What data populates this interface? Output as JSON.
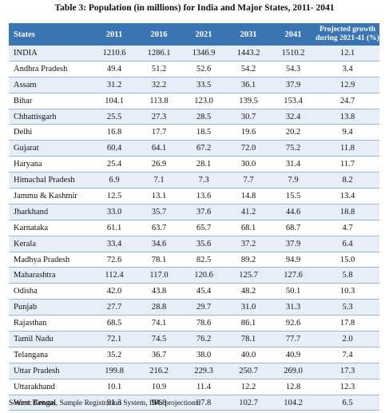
{
  "title": "Table 3: Population (in millions) for India and Major States, 2011- 2041",
  "headers": {
    "states": "States",
    "y2011": "2011",
    "y2016": "2016",
    "y2021": "2021",
    "y2031": "2031",
    "y2041": "2041",
    "growth_line1": "Projected growth",
    "growth_line2": "during 2021-41 (%)"
  },
  "rows": [
    {
      "state": "INDIA",
      "v2011": "1210.6",
      "v2016": "1286.1",
      "v2021": "1346.9",
      "v2031": "1443.2",
      "v2041": "1510.2",
      "growth": "12.1"
    },
    {
      "state": "Andhra Pradesh",
      "v2011": "49.4",
      "v2016": "51.2",
      "v2021": "52.6",
      "v2031": "54.2",
      "v2041": "54.3",
      "growth": "3.4"
    },
    {
      "state": "Assam",
      "v2011": "31.2",
      "v2016": "32.2",
      "v2021": "33.5",
      "v2031": "36.1",
      "v2041": "37.9",
      "growth": "12.9"
    },
    {
      "state": "Bihar",
      "v2011": "104.1",
      "v2016": "113.8",
      "v2021": "123.0",
      "v2031": "139.5",
      "v2041": "153.4",
      "growth": "24.7"
    },
    {
      "state": "Chhattisgarh",
      "v2011": "25.5",
      "v2016": "27.3",
      "v2021": "28.5",
      "v2031": "30.7",
      "v2041": "32.4",
      "growth": "13.8"
    },
    {
      "state": "Delhi",
      "v2011": "16.8",
      "v2016": "17.7",
      "v2021": "18.5",
      "v2031": "19.6",
      "v2041": "20.2",
      "growth": "9.4"
    },
    {
      "state": "Gujarat",
      "v2011": "60.4",
      "v2016": "64.1",
      "v2021": "67.2",
      "v2031": "72.0",
      "v2041": "75.2",
      "growth": "11.8"
    },
    {
      "state": "Haryana",
      "v2011": "25.4",
      "v2016": "26.9",
      "v2021": "28.1",
      "v2031": "30.0",
      "v2041": "31.4",
      "growth": "11.7"
    },
    {
      "state": "Himachal Pradesh",
      "v2011": "6.9",
      "v2016": "7.1",
      "v2021": "7.3",
      "v2031": "7.7",
      "v2041": "7.9",
      "growth": "8.2"
    },
    {
      "state": "Jammu & Kashmir",
      "v2011": "12.5",
      "v2016": "13.1",
      "v2021": "13.6",
      "v2031": "14.8",
      "v2041": "15.5",
      "growth": "13.4"
    },
    {
      "state": "Jharkhand",
      "v2011": "33.0",
      "v2016": "35.7",
      "v2021": "37.6",
      "v2031": "41.2",
      "v2041": "44.6",
      "growth": "18.8"
    },
    {
      "state": "Karnataka",
      "v2011": "61.1",
      "v2016": "63.7",
      "v2021": "65.7",
      "v2031": "68.1",
      "v2041": "68.7",
      "growth": "4.7"
    },
    {
      "state": "Kerala",
      "v2011": "33.4",
      "v2016": "34.6",
      "v2021": "35.6",
      "v2031": "37.2",
      "v2041": "37.9",
      "growth": "6.4"
    },
    {
      "state": "Madhya Pradesh",
      "v2011": "72.6",
      "v2016": "78.1",
      "v2021": "82.5",
      "v2031": "89.2",
      "v2041": "94.9",
      "growth": "15.0"
    },
    {
      "state": "Maharashtra",
      "v2011": "112.4",
      "v2016": "117.0",
      "v2021": "120.6",
      "v2031": "125.7",
      "v2041": "127.6",
      "growth": "5.8"
    },
    {
      "state": "Odisha",
      "v2011": "42.0",
      "v2016": "43.8",
      "v2021": "45.4",
      "v2031": "48.2",
      "v2041": "50.1",
      "growth": "10.3"
    },
    {
      "state": "Punjab",
      "v2011": "27.7",
      "v2016": "28.8",
      "v2021": "29.7",
      "v2031": "31.0",
      "v2041": "31.3",
      "growth": "5.3"
    },
    {
      "state": "Rajasthan",
      "v2011": "68.5",
      "v2016": "74.1",
      "v2021": "78.6",
      "v2031": "86.1",
      "v2041": "92.6",
      "growth": "17.8"
    },
    {
      "state": "Tamil Nadu",
      "v2011": "72.1",
      "v2016": "74.5",
      "v2021": "76.2",
      "v2031": "78.1",
      "v2041": "77.7",
      "growth": "2.0"
    },
    {
      "state": "Telangana",
      "v2011": "35.2",
      "v2016": "36.7",
      "v2021": "38.0",
      "v2031": "40.0",
      "v2041": "40.9",
      "growth": "7.4"
    },
    {
      "state": "Uttar Pradesh",
      "v2011": "199.8",
      "v2016": "216.2",
      "v2021": "229.3",
      "v2031": "250.7",
      "v2041": "269.0",
      "growth": "17.3"
    },
    {
      "state": "Uttarakhand",
      "v2011": "10.1",
      "v2016": "10.9",
      "v2021": "11.4",
      "v2031": "12.2",
      "v2041": "12.8",
      "growth": "12.3"
    },
    {
      "state": "West Bengal",
      "v2011": "91.3",
      "v2016": "94.8",
      "v2021": "97.8",
      "v2031": "102.7",
      "v2041": "104.2",
      "growth": "6.5"
    }
  ],
  "source": "Source: Census, Sample Registration System, IIPS projections.",
  "colors": {
    "header_bg": "#3b74b3",
    "row_shade": "#e6eff8",
    "row_plain": "#ffffff",
    "rule": "#9ab8d6"
  }
}
